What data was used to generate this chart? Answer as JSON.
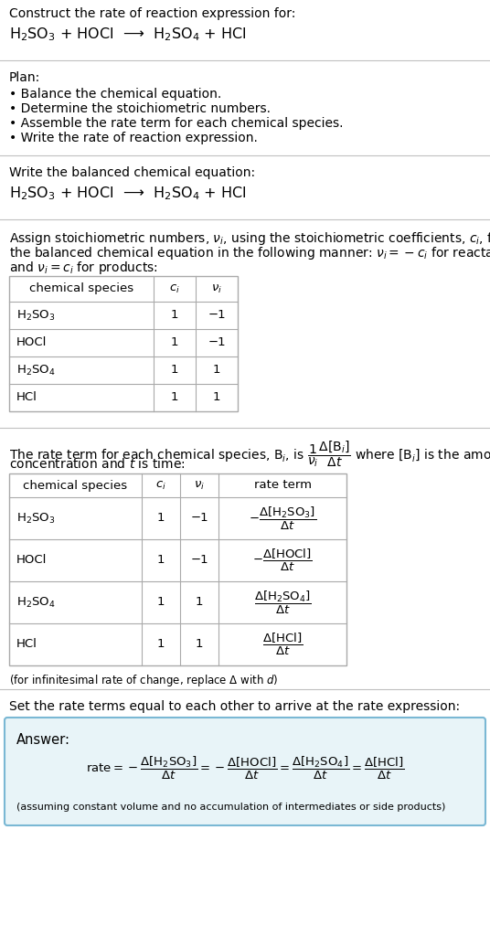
{
  "bg_color": "#ffffff",
  "text_color": "#000000",
  "answer_bg": "#e8f4f8",
  "answer_border": "#7ab8d4",
  "title_line1": "Construct the rate of reaction expression for:",
  "title_line2": "H$_2$SO$_3$ + HOCl  ⟶  H$_2$SO$_4$ + HCl",
  "plan_header": "Plan:",
  "plan_items": [
    "• Balance the chemical equation.",
    "• Determine the stoichiometric numbers.",
    "• Assemble the rate term for each chemical species.",
    "• Write the rate of reaction expression."
  ],
  "balanced_header": "Write the balanced chemical equation:",
  "balanced_eq": "H$_2$SO$_3$ + HOCl  ⟶  H$_2$SO$_4$ + HCl",
  "stoich_intro1": "Assign stoichiometric numbers, $\\nu_i$, using the stoichiometric coefficients, $c_i$, from",
  "stoich_intro2": "the balanced chemical equation in the following manner: $\\nu_i = -c_i$ for reactants",
  "stoich_intro3": "and $\\nu_i = c_i$ for products:",
  "table1_headers": [
    "chemical species",
    "$c_i$",
    "$\\nu_i$"
  ],
  "table1_rows": [
    [
      "H$_2$SO$_3$",
      "1",
      "−1"
    ],
    [
      "HOCl",
      "1",
      "−1"
    ],
    [
      "H$_2$SO$_4$",
      "1",
      "1"
    ],
    [
      "HCl",
      "1",
      "1"
    ]
  ],
  "rate_intro1": "The rate term for each chemical species, B$_i$, is $\\dfrac{1}{\\nu_i}\\dfrac{\\Delta[\\mathrm{B}_i]}{\\Delta t}$ where [B$_i$] is the amount",
  "rate_intro2": "concentration and $t$ is time:",
  "table2_headers": [
    "chemical species",
    "$c_i$",
    "$\\nu_i$",
    "rate term"
  ],
  "table2_rows": [
    [
      "H$_2$SO$_3$",
      "1",
      "−1",
      "$-\\dfrac{\\Delta[\\mathrm{H_2SO_3}]}{\\Delta t}$"
    ],
    [
      "HOCl",
      "1",
      "−1",
      "$-\\dfrac{\\Delta[\\mathrm{HOCl}]}{\\Delta t}$"
    ],
    [
      "H$_2$SO$_4$",
      "1",
      "1",
      "$\\dfrac{\\Delta[\\mathrm{H_2SO_4}]}{\\Delta t}$"
    ],
    [
      "HCl",
      "1",
      "1",
      "$\\dfrac{\\Delta[\\mathrm{HCl}]}{\\Delta t}$"
    ]
  ],
  "infinitesimal_note": "(for infinitesimal rate of change, replace Δ with $d$)",
  "set_equal_text": "Set the rate terms equal to each other to arrive at the rate expression:",
  "answer_label": "Answer:",
  "rate_expr": "$\\mathrm{rate} = -\\dfrac{\\Delta[\\mathrm{H_2SO_3}]}{\\Delta t} = -\\dfrac{\\Delta[\\mathrm{HOCl}]}{\\Delta t} = \\dfrac{\\Delta[\\mathrm{H_2SO_4}]}{\\Delta t} = \\dfrac{\\Delta[\\mathrm{HCl}]}{\\Delta t}$",
  "assumption_note": "(assuming constant volume and no accumulation of intermediates or side products)"
}
